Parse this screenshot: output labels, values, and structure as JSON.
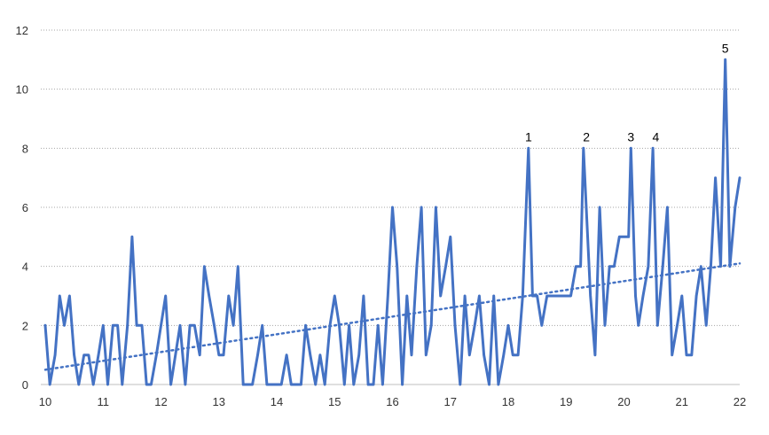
{
  "chart_data": {
    "type": "line",
    "title": "",
    "xlabel": "",
    "ylabel": "",
    "xlim": [
      10,
      22
    ],
    "ylim": [
      0,
      12
    ],
    "x_ticks": [
      "10",
      "11",
      "12",
      "13",
      "14",
      "15",
      "16",
      "17",
      "18",
      "19",
      "20",
      "21",
      "22"
    ],
    "y_ticks": [
      "0",
      "2",
      "4",
      "6",
      "8",
      "10",
      "12"
    ],
    "grid": "horizontal-dotted",
    "legend": "none",
    "series_color": "#4472C4",
    "trendline": {
      "type": "linear",
      "from": [
        10.0,
        0.5
      ],
      "to": [
        22.0,
        4.1
      ],
      "style": "dotted"
    },
    "series": [
      {
        "points": [
          [
            10.0,
            2
          ],
          [
            10.08,
            0
          ],
          [
            10.17,
            1
          ],
          [
            10.25,
            3
          ],
          [
            10.33,
            2
          ],
          [
            10.42,
            3
          ],
          [
            10.5,
            1
          ],
          [
            10.58,
            0
          ],
          [
            10.67,
            1
          ],
          [
            10.75,
            1
          ],
          [
            10.83,
            0
          ],
          [
            10.92,
            1
          ],
          [
            11.0,
            2
          ],
          [
            11.08,
            0
          ],
          [
            11.17,
            2
          ],
          [
            11.25,
            2
          ],
          [
            11.33,
            0
          ],
          [
            11.42,
            2
          ],
          [
            11.5,
            5
          ],
          [
            11.58,
            2
          ],
          [
            11.67,
            2
          ],
          [
            11.75,
            0
          ],
          [
            11.83,
            0
          ],
          [
            11.92,
            1
          ],
          [
            12.0,
            2
          ],
          [
            12.08,
            3
          ],
          [
            12.17,
            0
          ],
          [
            12.25,
            1
          ],
          [
            12.33,
            2
          ],
          [
            12.42,
            0
          ],
          [
            12.5,
            2
          ],
          [
            12.58,
            2
          ],
          [
            12.67,
            1
          ],
          [
            12.75,
            4
          ],
          [
            12.83,
            3
          ],
          [
            12.92,
            2
          ],
          [
            13.0,
            1
          ],
          [
            13.08,
            1
          ],
          [
            13.17,
            3
          ],
          [
            13.25,
            2
          ],
          [
            13.33,
            4
          ],
          [
            13.42,
            0
          ],
          [
            13.5,
            0
          ],
          [
            13.58,
            0
          ],
          [
            13.67,
            1
          ],
          [
            13.75,
            2
          ],
          [
            13.83,
            0
          ],
          [
            13.92,
            0
          ],
          [
            14.0,
            0
          ],
          [
            14.08,
            0
          ],
          [
            14.17,
            1
          ],
          [
            14.25,
            0
          ],
          [
            14.33,
            0
          ],
          [
            14.42,
            0
          ],
          [
            14.5,
            2
          ],
          [
            14.58,
            1
          ],
          [
            14.67,
            0
          ],
          [
            14.75,
            1
          ],
          [
            14.83,
            0
          ],
          [
            14.92,
            2
          ],
          [
            15.0,
            3
          ],
          [
            15.08,
            2
          ],
          [
            15.17,
            0
          ],
          [
            15.25,
            2
          ],
          [
            15.33,
            0
          ],
          [
            15.42,
            1
          ],
          [
            15.5,
            3
          ],
          [
            15.58,
            0
          ],
          [
            15.67,
            0
          ],
          [
            15.75,
            2
          ],
          [
            15.83,
            0
          ],
          [
            15.92,
            3
          ],
          [
            16.0,
            6
          ],
          [
            16.08,
            4
          ],
          [
            16.17,
            0
          ],
          [
            16.25,
            3
          ],
          [
            16.33,
            1
          ],
          [
            16.42,
            4
          ],
          [
            16.5,
            6
          ],
          [
            16.58,
            1
          ],
          [
            16.67,
            2
          ],
          [
            16.75,
            6
          ],
          [
            16.83,
            3
          ],
          [
            16.92,
            4
          ],
          [
            17.0,
            5
          ],
          [
            17.08,
            2
          ],
          [
            17.17,
            0
          ],
          [
            17.25,
            3
          ],
          [
            17.33,
            1
          ],
          [
            17.42,
            2
          ],
          [
            17.5,
            3
          ],
          [
            17.58,
            1
          ],
          [
            17.67,
            0
          ],
          [
            17.75,
            3
          ],
          [
            17.83,
            0
          ],
          [
            17.92,
            1
          ],
          [
            18.0,
            2
          ],
          [
            18.08,
            1
          ],
          [
            18.17,
            1
          ],
          [
            18.25,
            3
          ],
          [
            18.35,
            8
          ],
          [
            18.42,
            3
          ],
          [
            18.5,
            3
          ],
          [
            18.58,
            2
          ],
          [
            18.67,
            3
          ],
          [
            18.75,
            3
          ],
          [
            18.83,
            3
          ],
          [
            18.92,
            3
          ],
          [
            19.0,
            3
          ],
          [
            19.08,
            3
          ],
          [
            19.17,
            4
          ],
          [
            19.25,
            4
          ],
          [
            19.3,
            8
          ],
          [
            19.42,
            3
          ],
          [
            19.5,
            1
          ],
          [
            19.58,
            6
          ],
          [
            19.67,
            2
          ],
          [
            19.75,
            4
          ],
          [
            19.83,
            4
          ],
          [
            19.92,
            5
          ],
          [
            20.0,
            5
          ],
          [
            20.08,
            5
          ],
          [
            20.12,
            8
          ],
          [
            20.2,
            3
          ],
          [
            20.25,
            2
          ],
          [
            20.33,
            3
          ],
          [
            20.42,
            4
          ],
          [
            20.5,
            8
          ],
          [
            20.58,
            2
          ],
          [
            20.67,
            4
          ],
          [
            20.75,
            6
          ],
          [
            20.83,
            1
          ],
          [
            20.92,
            2
          ],
          [
            21.0,
            3
          ],
          [
            21.08,
            1
          ],
          [
            21.17,
            1
          ],
          [
            21.25,
            3
          ],
          [
            21.33,
            4
          ],
          [
            21.42,
            2
          ],
          [
            21.5,
            4
          ],
          [
            21.58,
            7
          ],
          [
            21.67,
            4
          ],
          [
            21.75,
            11
          ],
          [
            21.83,
            4
          ],
          [
            21.92,
            6
          ],
          [
            22.0,
            7
          ]
        ]
      }
    ],
    "annotations": [
      {
        "text": "1",
        "x": 18.35,
        "y": 8
      },
      {
        "text": "2",
        "x": 19.35,
        "y": 8
      },
      {
        "text": "3",
        "x": 20.12,
        "y": 8
      },
      {
        "text": "4",
        "x": 20.55,
        "y": 8
      },
      {
        "text": "5",
        "x": 21.75,
        "y": 11
      }
    ]
  }
}
